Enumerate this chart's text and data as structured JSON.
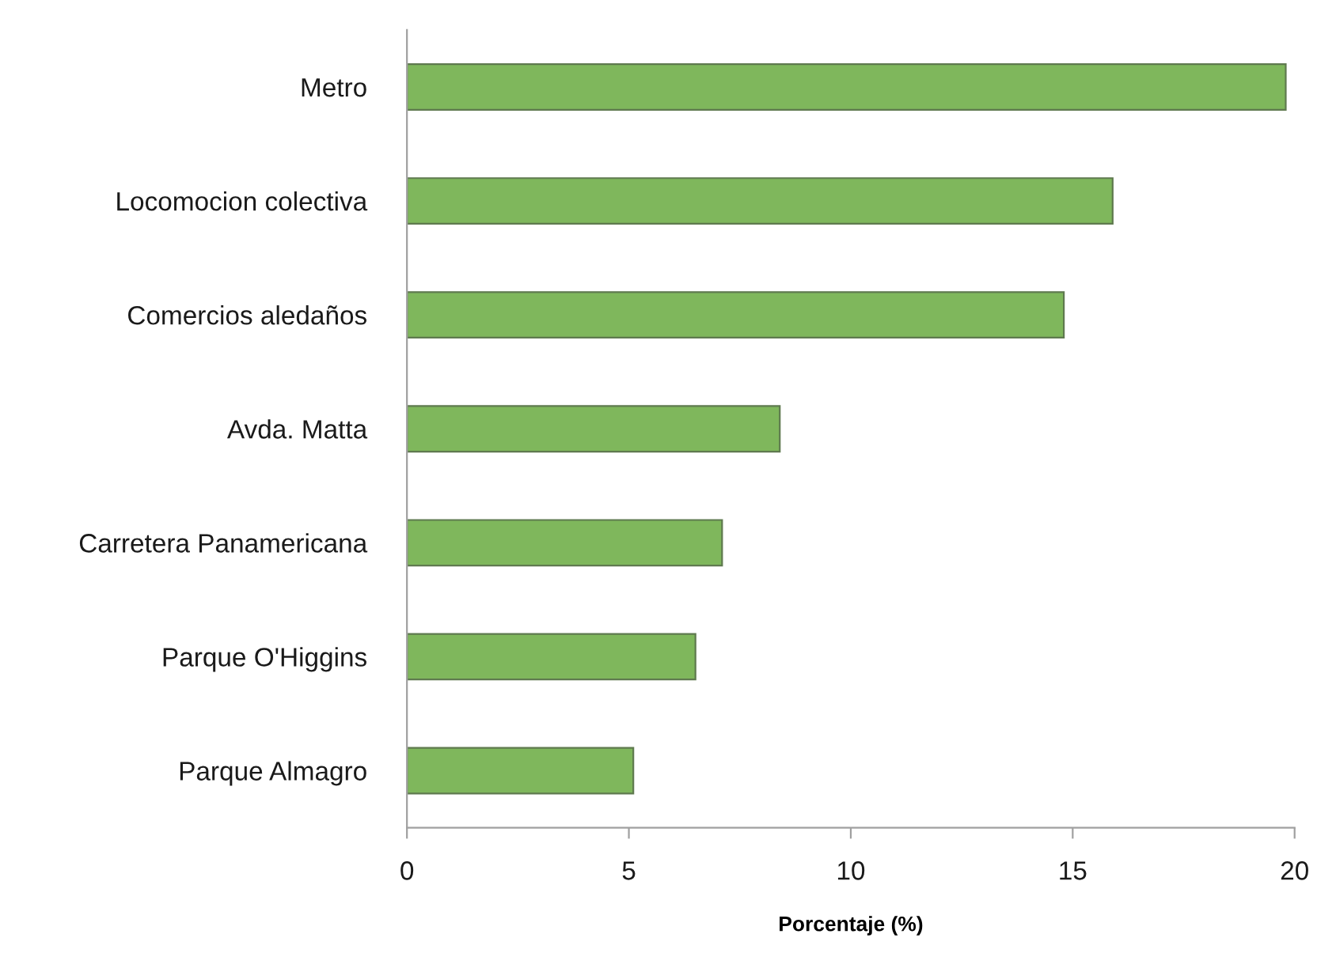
{
  "chart_data": {
    "type": "bar",
    "orientation": "horizontal",
    "categories": [
      "Metro",
      "Locomocion colectiva",
      "Comercios aledaños",
      "Avda. Matta",
      "Carretera Panamericana",
      "Parque O'Higgins",
      "Parque Almagro"
    ],
    "values": [
      19.8,
      15.9,
      14.8,
      8.4,
      7.1,
      6.5,
      5.1
    ],
    "color": "#7fb75c",
    "xlabel": "Porcentaje (%)",
    "xlim": [
      0,
      20
    ],
    "xticks": [
      0,
      5,
      10,
      15,
      20
    ]
  }
}
